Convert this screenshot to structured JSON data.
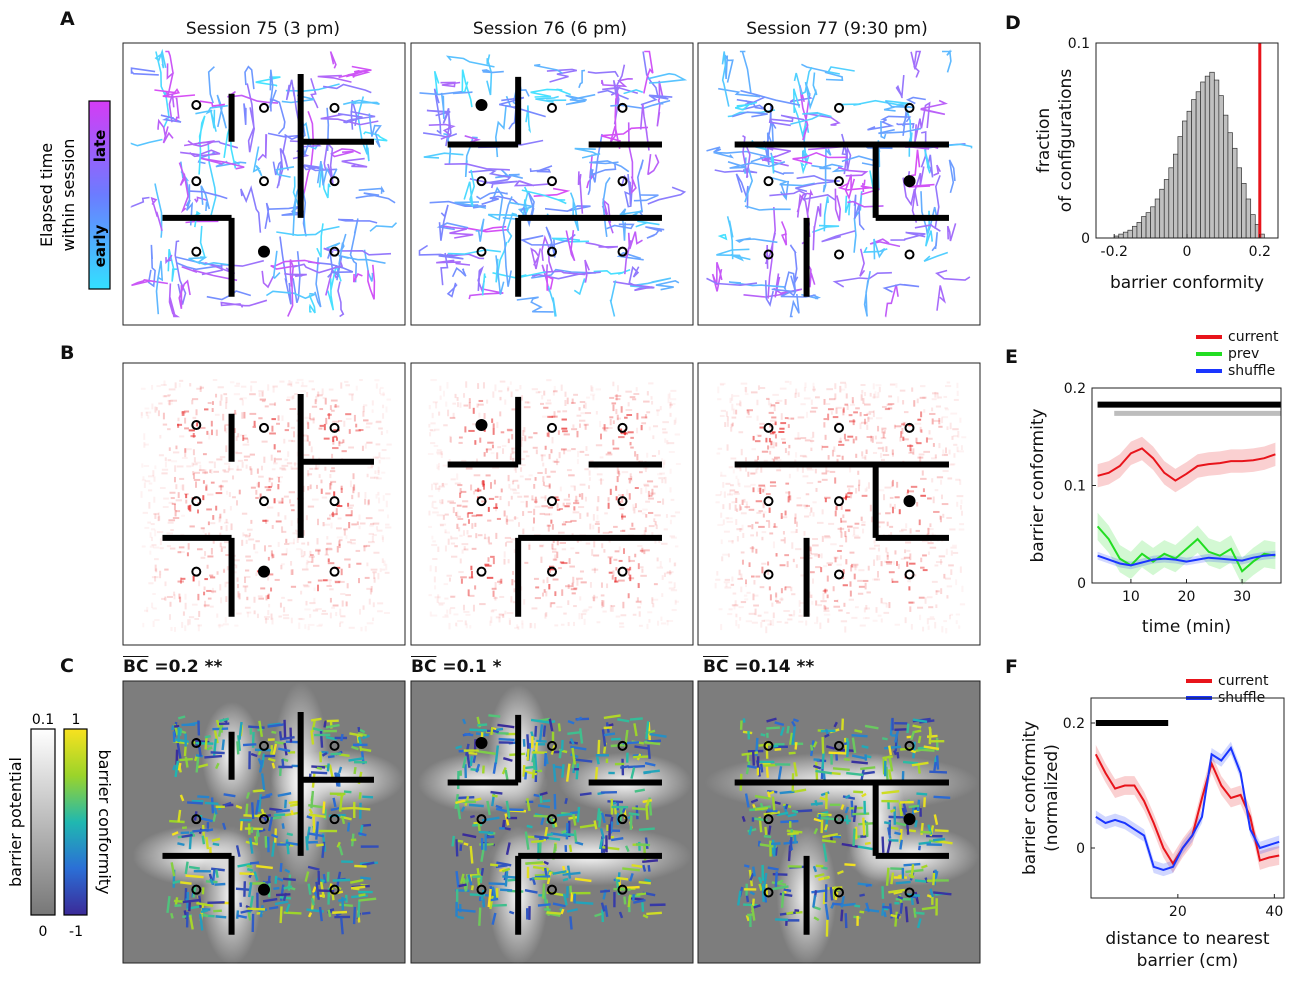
{
  "panel_labels": [
    "A",
    "B",
    "C",
    "D",
    "E",
    "F"
  ],
  "sessions": [
    {
      "title": "Session 75 (3 pm)",
      "bc_label": "BC",
      "bc_value": " =0.2 **"
    },
    {
      "title": "Session 76 (6 pm)",
      "bc_label": "BC",
      "bc_value": " =0.1 *"
    },
    {
      "title": "Session 77 (9:30 pm)",
      "bc_label": "BC",
      "bc_value": " =0.14 **"
    }
  ],
  "panel_a_colorbar": {
    "title_line1": "Elapsed time",
    "title_line2": "within session",
    "top": "late",
    "bottom": "early",
    "colors": [
      "#33e0ff",
      "#4f8fff",
      "#d43cf5"
    ]
  },
  "panel_c_colorbars": {
    "potential": {
      "label": "barrier potential",
      "top": "0.1",
      "bottom": "0"
    },
    "conformity": {
      "label": "barrier conformity",
      "top": "1",
      "bottom": "-1"
    }
  },
  "colors": {
    "current": "#e8141b",
    "prev": "#22dd22",
    "shuffle": "#1a35ff",
    "barrier": "#000000",
    "hist_bar": "#c0c0c0",
    "sig_gray": "#bdbdbd",
    "trace_a": "#c94df0",
    "arrow_b": "#e62020"
  },
  "chart_data": [
    {
      "panel": "D",
      "type": "bar",
      "xlabel": "barrier conformity",
      "ylabel": "fraction of configurations",
      "xlim": [
        -0.25,
        0.25
      ],
      "ylim": [
        0,
        0.1
      ],
      "xticks": [
        -0.2,
        0,
        0.2
      ],
      "xtick_labels": [
        "-0.2",
        "0",
        "0.2"
      ],
      "yticks": [
        0,
        0.1
      ],
      "ytick_labels": [
        "0",
        "0.1"
      ],
      "bin_width": 0.0125,
      "bin_starts": [
        -0.2,
        -0.1875,
        -0.175,
        -0.1625,
        -0.15,
        -0.1375,
        -0.125,
        -0.1125,
        -0.1,
        -0.0875,
        -0.075,
        -0.0625,
        -0.05,
        -0.0375,
        -0.025,
        -0.0125,
        0,
        0.0125,
        0.025,
        0.0375,
        0.05,
        0.0625,
        0.075,
        0.0875,
        0.1,
        0.1125,
        0.125,
        0.1375,
        0.15,
        0.1625,
        0.175,
        0.1875,
        0.2
      ],
      "values": [
        0.001,
        0.002,
        0.003,
        0.004,
        0.006,
        0.008,
        0.011,
        0.013,
        0.016,
        0.02,
        0.025,
        0.03,
        0.036,
        0.043,
        0.052,
        0.06,
        0.065,
        0.071,
        0.075,
        0.08,
        0.083,
        0.085,
        0.081,
        0.073,
        0.063,
        0.054,
        0.046,
        0.036,
        0.028,
        0.02,
        0.012,
        0.007,
        0.002
      ],
      "reference_line": {
        "x": 0.2,
        "label": "current"
      }
    },
    {
      "panel": "E",
      "type": "line",
      "xlabel": "time (min)",
      "ylabel": "barrier conformity",
      "xlim": [
        3,
        37
      ],
      "ylim": [
        0,
        0.2
      ],
      "xticks": [
        10,
        20,
        30
      ],
      "xtick_labels": [
        "10",
        "20",
        "30"
      ],
      "yticks": [
        0,
        0.1,
        0.2
      ],
      "ytick_labels": [
        "0",
        "0.1",
        "0.2"
      ],
      "legend_position": "top-right",
      "x": [
        4,
        6,
        8,
        10,
        12,
        14,
        16,
        18,
        20,
        22,
        24,
        26,
        28,
        30,
        32,
        34,
        36
      ],
      "series": [
        {
          "name": "current",
          "values": [
            0.11,
            0.113,
            0.12,
            0.133,
            0.138,
            0.128,
            0.113,
            0.105,
            0.112,
            0.12,
            0.122,
            0.123,
            0.125,
            0.125,
            0.126,
            0.128,
            0.132
          ],
          "band": 0.012
        },
        {
          "name": "prev",
          "values": [
            0.058,
            0.045,
            0.025,
            0.018,
            0.03,
            0.022,
            0.03,
            0.025,
            0.035,
            0.045,
            0.032,
            0.028,
            0.035,
            0.012,
            0.022,
            0.03,
            0.028
          ],
          "band": 0.014
        },
        {
          "name": "shuffle",
          "values": [
            0.028,
            0.024,
            0.02,
            0.018,
            0.021,
            0.024,
            0.025,
            0.024,
            0.022,
            0.024,
            0.026,
            0.025,
            0.024,
            0.023,
            0.026,
            0.028,
            0.029
          ],
          "band": 0.004
        }
      ],
      "significance_bars": [
        {
          "color": "black",
          "x": [
            4,
            37
          ],
          "y": 0.183
        },
        {
          "color": "gray",
          "x": [
            7,
            37
          ],
          "y": 0.174
        }
      ]
    },
    {
      "panel": "F",
      "type": "line",
      "xlabel": "distance to nearest barrier (cm)",
      "xlabel_line1": "distance to nearest",
      "xlabel_line2": "barrier (cm)",
      "ylabel": "barrier conformity (normalized)",
      "ylabel_line1": "barrier conformity",
      "ylabel_line2": "(normalized)",
      "xlim": [
        2,
        42
      ],
      "ylim": [
        -0.08,
        0.24
      ],
      "xticks": [
        20,
        40
      ],
      "xtick_labels": [
        "20",
        "40"
      ],
      "yticks": [
        0,
        0.2
      ],
      "ytick_labels": [
        "0",
        "0.2"
      ],
      "legend_position": "top-right",
      "x": [
        3,
        5,
        7,
        9,
        11,
        13,
        15,
        17,
        19,
        21,
        23,
        25,
        27,
        29,
        31,
        33,
        35,
        37,
        39,
        41
      ],
      "series": [
        {
          "name": "current",
          "values": [
            0.15,
            0.12,
            0.095,
            0.1,
            0.1,
            0.075,
            0.04,
            0.0,
            -0.025,
            0.0,
            0.02,
            0.08,
            0.135,
            0.1,
            0.08,
            0.085,
            0.05,
            -0.02,
            -0.015,
            -0.012
          ],
          "band": 0.015
        },
        {
          "name": "shuffle",
          "values": [
            0.05,
            0.04,
            0.045,
            0.04,
            0.03,
            0.02,
            -0.03,
            -0.035,
            -0.03,
            0.0,
            0.02,
            0.05,
            0.15,
            0.14,
            0.16,
            0.12,
            0.03,
            0.0,
            0.005,
            0.01
          ],
          "band": 0.01
        }
      ],
      "significance_bars": [
        {
          "color": "black",
          "x": [
            3,
            18
          ],
          "y": 0.2
        }
      ]
    }
  ]
}
